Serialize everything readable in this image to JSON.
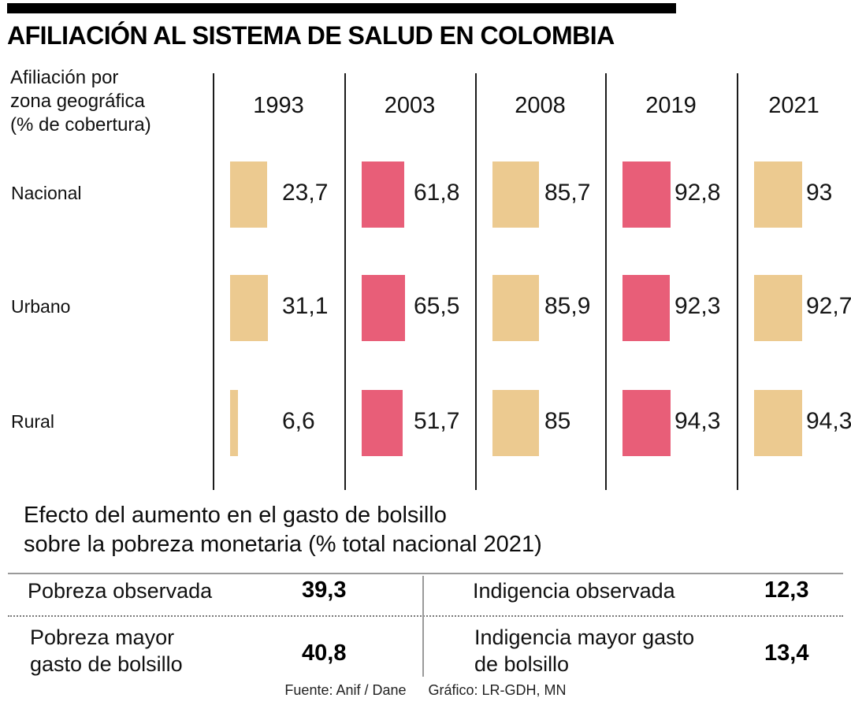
{
  "title": "AFILIACIÓN AL SISTEMA DE SALUD EN COLOMBIA",
  "chart_data": {
    "type": "bar",
    "title": "AFILIACIÓN AL SISTEMA DE SALUD EN COLOMBIA",
    "axis_label": "Afiliación por zona geográfica (% de cobertura)",
    "axis_label_lines": [
      "Afiliación por",
      "zona geográfica",
      "(% de cobertura)"
    ],
    "years": [
      "1993",
      "2003",
      "2008",
      "2019",
      "2021"
    ],
    "rows": [
      {
        "label": "Nacional",
        "values": [
          23.7,
          61.8,
          85.7,
          92.8,
          93
        ],
        "display": [
          "23,7",
          "61,8",
          "85,7",
          "92,8",
          "93"
        ]
      },
      {
        "label": "Urbano",
        "values": [
          31.1,
          65.5,
          85.9,
          92.3,
          92.7
        ],
        "display": [
          "31,1",
          "65,5",
          "85,9",
          "92,3",
          "92,7"
        ]
      },
      {
        "label": "Rural",
        "values": [
          6.6,
          51.7,
          85,
          94.3,
          94.3
        ],
        "display": [
          "6,6",
          "51,7",
          "85",
          "94,3",
          "94,3"
        ]
      }
    ],
    "ylim": [
      0,
      100
    ],
    "colors": {
      "tan": "#ecca90",
      "pink": "#e85e78"
    },
    "year_colors": [
      "tan",
      "pink",
      "tan",
      "pink",
      "tan"
    ],
    "legend": "none",
    "grid": "vertical column dividers"
  },
  "section2": {
    "title": "Efecto del aumento en el gasto de bolsillo sobre la pobreza monetaria (% total nacional 2021)",
    "title_lines": [
      "Efecto del aumento en el gasto de bolsillo",
      "sobre la pobreza monetaria (% total nacional 2021)"
    ],
    "cells": [
      {
        "label": "Pobreza observada",
        "value": "39,3"
      },
      {
        "label": "Indigencia observada",
        "value": "12,3"
      },
      {
        "label": "Pobreza mayor gasto de bolsillo",
        "value": "40,8"
      },
      {
        "label": "Indigencia mayor gasto de bolsillo",
        "value": "13,4"
      }
    ]
  },
  "footer": {
    "source": "Fuente: Anif / Dane",
    "credit": "Gráfico: LR-GDH, MN"
  }
}
